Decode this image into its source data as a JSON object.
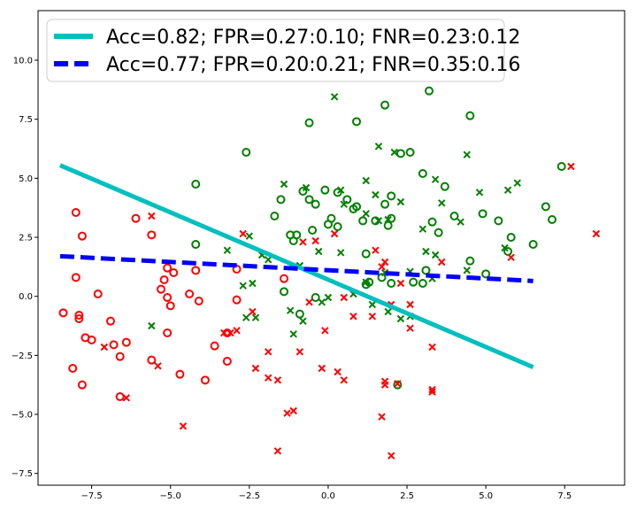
{
  "chart_data": {
    "type": "scatter",
    "title": "",
    "xlabel": "",
    "ylabel": "",
    "xlim": [
      -9.2,
      9.4
    ],
    "ylim": [
      -8.0,
      12.1
    ],
    "xticks": [
      -7.5,
      -5.0,
      -2.5,
      0.0,
      2.5,
      5.0,
      7.5
    ],
    "xtick_labels": [
      "−7.5",
      "−5.0",
      "−2.5",
      "0.0",
      "2.5",
      "5.0",
      "7.5"
    ],
    "yticks": [
      -7.5,
      -5.0,
      -2.5,
      0.0,
      2.5,
      5.0,
      7.5,
      10.0
    ],
    "ytick_labels": [
      "−7.5",
      "−5.0",
      "−2.5",
      "0.0",
      "2.5",
      "5.0",
      "7.5",
      "10.0"
    ],
    "grid": false,
    "legend_position": "top-left",
    "colors": {
      "green": "#008000",
      "red": "#ff0000",
      "cyan": "#00bfbf",
      "blue": "#0000ff"
    },
    "lines": [
      {
        "name": "Acc=0.82; FPR=0.27:0.10; FNR=0.23:0.12",
        "color": "#00bfbf",
        "style": "solid",
        "x": [
          -8.5,
          6.5
        ],
        "y": [
          5.55,
          -3.0
        ]
      },
      {
        "name": "Acc=0.77; FPR=0.20:0.21; FNR=0.35:0.16",
        "color": "#0000ff",
        "style": "dashed",
        "x": [
          -8.5,
          6.5
        ],
        "y": [
          1.7,
          0.65
        ]
      }
    ],
    "points": [
      {
        "group": "green-circle",
        "color": "#008000",
        "marker": "o",
        "x": [
          -0.6,
          0.3,
          -2.6,
          0.9,
          1.8,
          2.3,
          3.2,
          4.5,
          -0.1,
          -0.6,
          0.1,
          0.6,
          1.1,
          -1.5,
          -1.1,
          -0.8,
          2.0,
          1.8,
          3.0,
          3.7,
          4.0,
          -4.2,
          -1.2,
          -0.4,
          0.0,
          0.3,
          0.9,
          1.5,
          1.2,
          1.9,
          2.0,
          2.6,
          3.3,
          4.9,
          5.4,
          5.8,
          6.9,
          7.1,
          7.4,
          -4.2,
          -1.7,
          -1.0,
          -0.5,
          0.8,
          1.3,
          2.0,
          2.7,
          3.0,
          3.5,
          4.5,
          5.7,
          6.5,
          -1.4,
          -0.4,
          1.2,
          1.7,
          3.1,
          5.0,
          -0.9,
          2.2
        ],
        "y": [
          7.35,
          4.4,
          6.1,
          7.4,
          8.1,
          6.05,
          8.7,
          7.65,
          4.5,
          4.1,
          3.3,
          4.1,
          3.2,
          4.1,
          2.35,
          4.45,
          4.25,
          3.9,
          5.2,
          4.65,
          3.4,
          4.75,
          2.6,
          3.9,
          3.05,
          2.95,
          3.8,
          3.2,
          1.8,
          3.0,
          3.3,
          6.1,
          3.15,
          3.5,
          3.2,
          2.5,
          3.8,
          3.25,
          5.5,
          2.2,
          3.4,
          2.6,
          2.8,
          3.7,
          0.6,
          0.55,
          0.6,
          0.55,
          2.7,
          1.5,
          1.9,
          2.2,
          0.2,
          -0.05,
          0.5,
          0.8,
          1.1,
          0.95,
          -0.75,
          -3.75
        ]
      },
      {
        "group": "red-circle",
        "color": "#ff0000",
        "marker": "o",
        "x": [
          -8.0,
          -7.8,
          -8.0,
          -6.1,
          -5.6,
          -5.3,
          -5.2,
          -5.1,
          -5.1,
          -5.0,
          -4.9,
          -4.2,
          -4.1,
          -7.9,
          -7.9,
          -7.5,
          -7.3,
          -6.9,
          -6.8,
          -6.6,
          -6.4,
          -6.6,
          -8.4,
          -8.1,
          -7.8,
          -7.7,
          -5.6,
          -5.1,
          -4.7,
          -4.4,
          -3.9,
          -3.6,
          -3.2,
          -3.2,
          -2.9,
          -2.9,
          -1.4
        ],
        "y": [
          3.55,
          2.55,
          0.8,
          3.3,
          2.6,
          0.3,
          0.7,
          -0.05,
          1.2,
          -0.4,
          1.0,
          1.1,
          -0.2,
          -0.8,
          -0.95,
          -1.85,
          0.1,
          -1.05,
          -2.05,
          -2.55,
          -1.95,
          -4.25,
          -0.7,
          -3.05,
          -3.75,
          -1.75,
          -2.7,
          -1.55,
          -3.3,
          0.1,
          -3.55,
          -2.1,
          -1.55,
          -2.75,
          1.15,
          -0.15,
          0.75
        ]
      },
      {
        "group": "green-x",
        "color": "#008000",
        "marker": "x",
        "x": [
          0.2,
          -1.4,
          1.6,
          2.1,
          4.4,
          1.2,
          -0.7,
          0.4,
          1.5,
          3.4,
          3.6,
          4.2,
          4.8,
          5.7,
          6.0,
          -2.5,
          -2.1,
          -0.3,
          0.5,
          1.2,
          1.6,
          1.9,
          2.3,
          3.0,
          3.4,
          -3.2,
          -2.7,
          -2.4,
          -1.9,
          -0.9,
          0.4,
          0.8,
          1.2,
          1.8,
          2.6,
          3.1,
          4.4,
          5.6,
          -5.6,
          -2.3,
          -1.2,
          -1.1,
          -0.2,
          0.0,
          1.4,
          1.9,
          2.6,
          2.3,
          3.3,
          -2.6,
          -0.8
        ],
        "y": [
          8.45,
          4.75,
          6.35,
          6.1,
          6.0,
          4.9,
          4.6,
          4.5,
          4.3,
          4.95,
          3.95,
          3.15,
          4.4,
          4.5,
          4.8,
          2.55,
          1.75,
          1.9,
          3.9,
          3.5,
          3.2,
          3.25,
          4.0,
          2.85,
          1.75,
          1.95,
          0.45,
          0.55,
          1.55,
          1.3,
          1.85,
          0.1,
          0.6,
          1.0,
          1.05,
          1.9,
          1.1,
          2.05,
          -1.25,
          -0.9,
          -0.6,
          -1.6,
          -0.25,
          -0.05,
          -0.35,
          -0.65,
          -0.85,
          -0.95,
          0.75,
          -0.9,
          -1.05
        ]
      },
      {
        "group": "red-x",
        "color": "#ff0000",
        "marker": "x",
        "x": [
          7.7,
          8.5,
          -2.7,
          -5.6,
          -0.8,
          -0.4,
          0.2,
          0.5,
          0.8,
          1.4,
          1.8,
          2.0,
          2.3,
          2.6,
          3.3,
          3.6,
          5.8,
          -2.4,
          -0.6,
          -0.1,
          1.5,
          1.7,
          1.8,
          2.2,
          2.6,
          3.3,
          -3.3,
          -3.1,
          -2.9,
          -2.3,
          -1.9,
          -1.6,
          -1.3,
          -1.1,
          -0.9,
          -0.2,
          0.3,
          0.5,
          1.7,
          1.8,
          2.0,
          3.3,
          -1.9,
          -5.4,
          -6.4,
          -7.1,
          -4.6,
          -1.6
        ],
        "y": [
          5.5,
          2.65,
          2.65,
          3.4,
          2.3,
          2.35,
          2.65,
          -0.05,
          -0.85,
          -0.85,
          1.45,
          -0.35,
          0.55,
          -0.35,
          -2.15,
          1.45,
          1.65,
          -0.65,
          -0.25,
          -1.45,
          1.95,
          1.25,
          -3.6,
          -3.7,
          -1.35,
          -3.95,
          -1.55,
          -1.55,
          -1.45,
          -3.05,
          -2.35,
          -3.55,
          -4.95,
          -4.85,
          -2.35,
          -3.05,
          -3.2,
          -3.55,
          -5.1,
          -3.75,
          -6.75,
          -4.05,
          -3.45,
          -2.95,
          -4.3,
          -2.15,
          -5.5,
          -6.55
        ]
      }
    ]
  }
}
